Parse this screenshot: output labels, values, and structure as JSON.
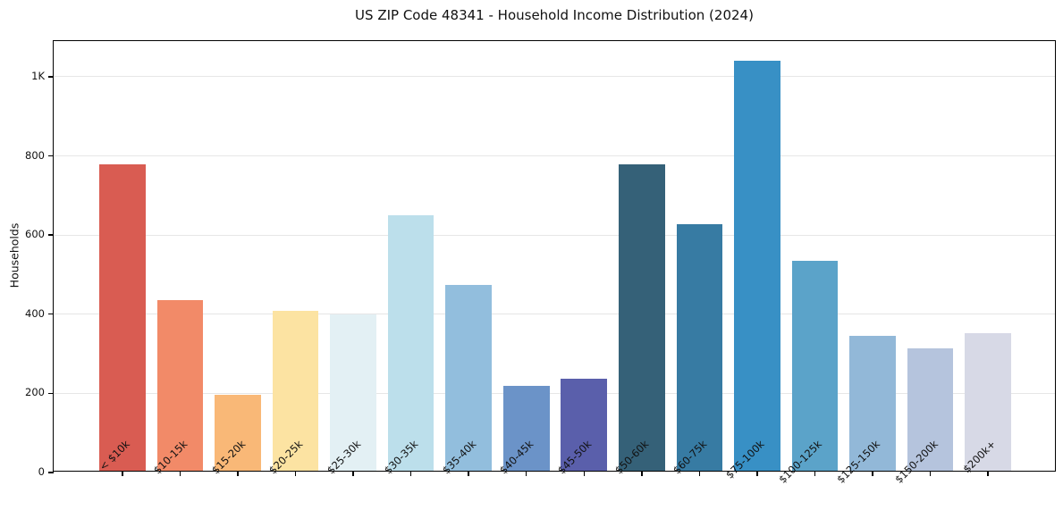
{
  "chart_data": {
    "type": "bar",
    "title": "US ZIP Code 48341 - Household Income Distribution (2024)",
    "xlabel": "",
    "ylabel": "Households",
    "categories": [
      "< $10k",
      "$10-15k",
      "$15-20k",
      "$20-25k",
      "$25-30k",
      "$30-35k",
      "$35-40k",
      "$40-45k",
      "$45-50k",
      "$50-60k",
      "$60-75k",
      "$75-100k",
      "$100-125k",
      "$125-150k",
      "$150-200k",
      "$200k+"
    ],
    "values": [
      775,
      430,
      192,
      405,
      396,
      645,
      470,
      215,
      233,
      775,
      622,
      1035,
      530,
      340,
      310,
      348
    ],
    "bar_colors": [
      "#d95c52",
      "#f28a68",
      "#f9b877",
      "#fce3a2",
      "#e3f0f4",
      "#bcdfeb",
      "#92bedd",
      "#6b93c8",
      "#5a5fab",
      "#356178",
      "#377ba3",
      "#3890c5",
      "#5ba3c9",
      "#92b8d8",
      "#b5c4dd",
      "#d7d9e6"
    ],
    "ylim": [
      0,
      1090
    ],
    "yticks": [
      {
        "value": 0,
        "label": "0"
      },
      {
        "value": 200,
        "label": "200"
      },
      {
        "value": 400,
        "label": "400"
      },
      {
        "value": 600,
        "label": "600"
      },
      {
        "value": 800,
        "label": "800"
      },
      {
        "value": 1000,
        "label": "1K"
      }
    ],
    "grid": "horizontal-only",
    "legend": "none",
    "axis_text_color": "#111111",
    "gridline_color": "#e6e6e6"
  }
}
